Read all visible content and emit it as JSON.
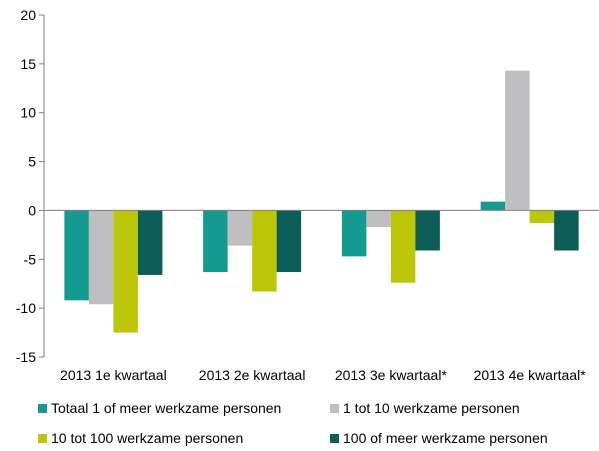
{
  "colors": {
    "series": [
      "#149a8e",
      "#bfbfc1",
      "#bdc70a",
      "#0a5e55"
    ],
    "axis": "#7f7f7f"
  },
  "chart_data": {
    "type": "bar",
    "categories": [
      "2013 1e kwartaal",
      "2013 2e kwartaal",
      "2013 3e kwartaal*",
      "2013 4e kwartaal*"
    ],
    "series": [
      {
        "name": "Totaal 1 of meer werkzame personen",
        "values": [
          -9.2,
          -6.3,
          -4.7,
          0.9
        ]
      },
      {
        "name": "1 tot 10 werkzame personen",
        "values": [
          -9.6,
          -3.6,
          -1.7,
          14.3
        ]
      },
      {
        "name": "10 tot 100 werkzame personen",
        "values": [
          -12.5,
          -8.3,
          -7.4,
          -1.3
        ]
      },
      {
        "name": "100 of meer werkzame personen",
        "values": [
          -6.6,
          -6.3,
          -4.1,
          -4.1
        ]
      }
    ],
    "ylim": [
      -15,
      20
    ],
    "yticks": [
      20,
      15,
      10,
      5,
      0,
      -5,
      -10,
      -15
    ],
    "ytick_labels": [
      "20",
      "15",
      "10",
      "5",
      "0",
      "-5",
      "-10",
      "-15"
    ],
    "grid": false,
    "legend_position": "bottom"
  }
}
